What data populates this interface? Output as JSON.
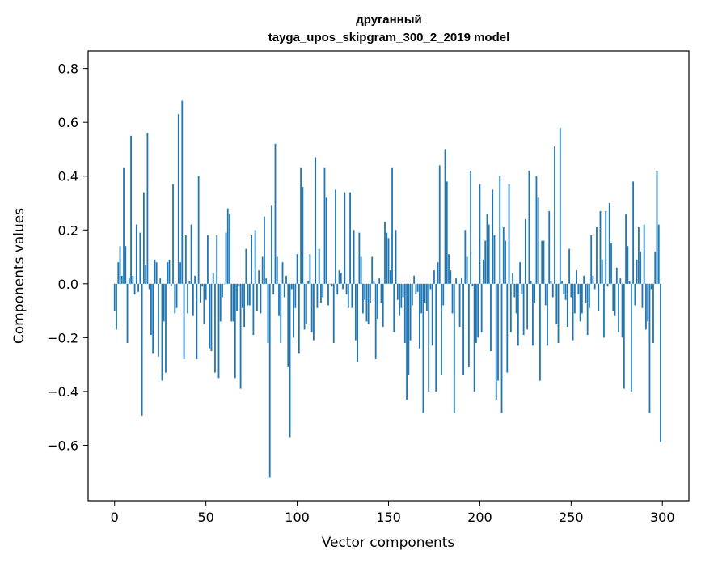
{
  "chart_data": {
    "type": "bar",
    "title": "друганный",
    "subtitle": "tayga_upos_skipgram_300_2_2019 model",
    "xlabel": "Vector components",
    "ylabel": "Components values",
    "xlim": [
      -14.5,
      314.5
    ],
    "ylim": [
      -0.806,
      0.865
    ],
    "xticks": [
      0,
      50,
      100,
      150,
      200,
      250,
      300
    ],
    "yticks": [
      -0.6,
      -0.4,
      -0.2,
      0.0,
      0.2,
      0.4,
      0.6,
      0.8
    ],
    "ytick_labels": [
      "−0.6",
      "−0.4",
      "−0.2",
      "0.0",
      "0.2",
      "0.4",
      "0.6",
      "0.8"
    ],
    "grid": false,
    "bar_color": "#1f77b4",
    "values": [
      -0.1,
      -0.17,
      0.08,
      0.14,
      0.03,
      0.43,
      0.14,
      -0.22,
      0.02,
      0.55,
      0.03,
      -0.04,
      0.22,
      -0.03,
      0.19,
      -0.49,
      0.34,
      0.07,
      0.56,
      -0.02,
      -0.19,
      -0.26,
      0.09,
      0.08,
      -0.27,
      0.02,
      -0.36,
      -0.14,
      -0.33,
      0.08,
      0.09,
      -0.01,
      0.37,
      -0.11,
      -0.09,
      0.63,
      0.08,
      0.68,
      -0.28,
      0.18,
      -0.11,
      0.01,
      0.22,
      -0.12,
      0.03,
      -0.28,
      0.4,
      -0.07,
      -0.01,
      -0.15,
      -0.06,
      0.18,
      -0.24,
      -0.25,
      0.04,
      -0.33,
      0.18,
      -0.35,
      -0.14,
      -0.05,
      0.0,
      0.19,
      0.28,
      0.26,
      -0.14,
      -0.14,
      -0.35,
      -0.1,
      -0.01,
      -0.39,
      -0.09,
      -0.16,
      0.13,
      -0.08,
      -0.08,
      0.18,
      -0.19,
      0.2,
      -0.1,
      0.05,
      -0.11,
      0.1,
      0.25,
      0.02,
      -0.22,
      -0.72,
      0.29,
      -0.04,
      0.52,
      0.1,
      -0.12,
      -0.22,
      0.08,
      -0.05,
      0.03,
      -0.31,
      -0.57,
      -0.02,
      -0.2,
      -0.09,
      0.11,
      -0.26,
      0.43,
      0.36,
      -0.17,
      -0.15,
      0.01,
      0.11,
      -0.18,
      -0.21,
      0.47,
      -0.09,
      0.13,
      -0.07,
      -0.05,
      0.43,
      0.32,
      -0.08,
      0.0,
      -0.01,
      -0.22,
      0.35,
      -0.04,
      0.05,
      0.04,
      -0.02,
      0.34,
      -0.04,
      -0.09,
      0.34,
      -0.09,
      0.2,
      -0.21,
      -0.29,
      0.19,
      0.1,
      -0.11,
      -0.06,
      -0.14,
      -0.15,
      -0.07,
      0.1,
      0.01,
      -0.28,
      -0.13,
      0.02,
      -0.07,
      -0.16,
      0.23,
      0.19,
      0.17,
      0.05,
      0.43,
      -0.18,
      0.2,
      -0.06,
      -0.12,
      -0.09,
      -0.05,
      -0.22,
      -0.43,
      -0.34,
      -0.21,
      -0.08,
      0.03,
      -0.04,
      -0.03,
      -0.24,
      -0.11,
      -0.48,
      -0.07,
      -0.1,
      -0.4,
      -0.02,
      -0.23,
      0.05,
      -0.4,
      0.08,
      0.44,
      -0.34,
      -0.08,
      0.5,
      0.38,
      0.11,
      0.05,
      -0.11,
      -0.48,
      0.02,
      0.0,
      -0.16,
      0.02,
      -0.34,
      0.2,
      0.1,
      -0.31,
      0.42,
      -0.01,
      -0.4,
      -0.22,
      -0.2,
      0.37,
      -0.18,
      0.09,
      0.16,
      0.26,
      0.22,
      -0.25,
      0.35,
      0.18,
      -0.43,
      -0.36,
      0.4,
      -0.48,
      0.21,
      0.16,
      -0.33,
      0.37,
      -0.18,
      0.04,
      -0.05,
      -0.11,
      -0.23,
      0.08,
      -0.04,
      -0.19,
      0.24,
      -0.17,
      0.42,
      0.01,
      -0.23,
      -0.07,
      0.4,
      0.32,
      -0.36,
      0.16,
      0.16,
      -0.08,
      -0.23,
      0.27,
      0.01,
      -0.05,
      0.51,
      -0.15,
      -0.22,
      0.58,
      0.01,
      -0.04,
      -0.06,
      -0.16,
      0.13,
      -0.05,
      -0.21,
      -0.11,
      0.05,
      -0.04,
      -0.14,
      -0.11,
      0.03,
      -0.07,
      -0.19,
      -0.09,
      0.18,
      0.03,
      -0.02,
      0.21,
      -0.1,
      0.27,
      0.09,
      -0.2,
      0.27,
      -0.01,
      0.3,
      0.15,
      -0.1,
      -0.12,
      0.06,
      -0.18,
      0.02,
      -0.2,
      -0.39,
      0.26,
      0.14,
      0.01,
      -0.4,
      0.38,
      -0.08,
      0.09,
      0.21,
      0.12,
      -0.09,
      0.22,
      -0.17,
      -0.14,
      -0.48,
      -0.02,
      -0.22,
      0.12,
      0.42,
      0.22,
      -0.59
    ]
  }
}
